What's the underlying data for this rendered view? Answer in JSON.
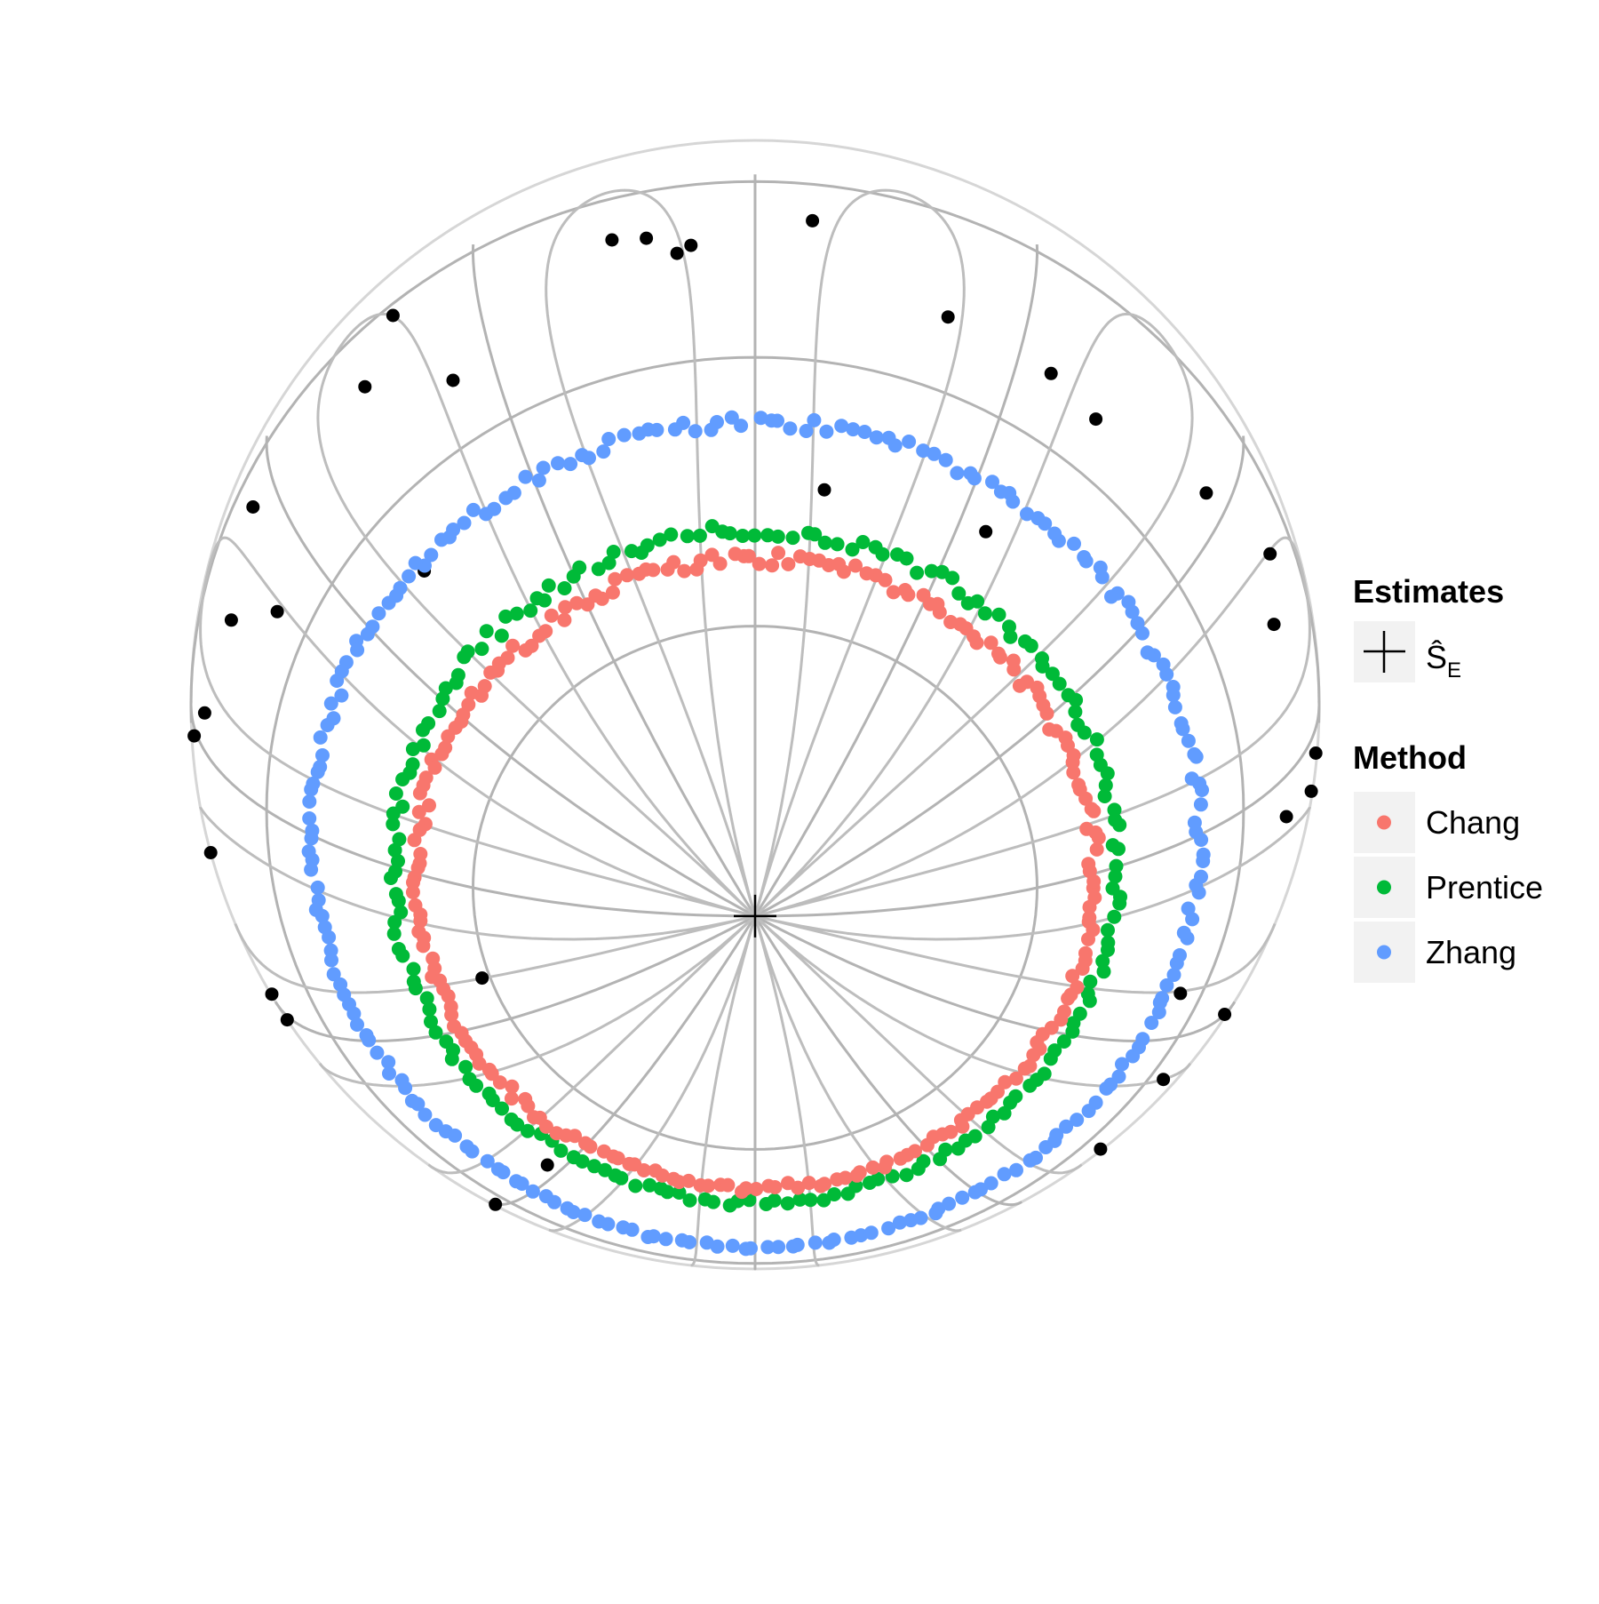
{
  "chart_data": {
    "type": "scatter",
    "title": "",
    "projection": "orthographic-sphere",
    "grid": true,
    "legend_placement": "right",
    "center_estimate": {
      "label": "Ŝ",
      "subscript": "E",
      "legend_title": "Estimates",
      "color": "#000000"
    },
    "method_legend_title": "Method",
    "series": [
      {
        "name": "Chang",
        "color": "#F8766D",
        "colatitude_deg": 37,
        "count": 220
      },
      {
        "name": "Prentice",
        "color": "#00BA38",
        "colatitude_deg": 40,
        "count": 190
      },
      {
        "name": "Zhang",
        "color": "#619CFF",
        "colatitude_deg": 52,
        "count": 230
      }
    ],
    "observations": {
      "color": "#000000",
      "points": [
        [
          -3.1,
          84.5
        ],
        [
          -6.8,
          83.2
        ],
        [
          21.7,
          79.3
        ],
        [
          16.3,
          73.4
        ],
        [
          49.2,
          67.6
        ],
        [
          55.9,
          69.4
        ],
        [
          68.7,
          70.3
        ],
        [
          33.2,
          72.9
        ],
        [
          84.1,
          81.6
        ],
        [
          96.7,
          77.1
        ],
        [
          98.2,
          76.0
        ],
        [
          101.3,
          79.6
        ],
        [
          104.9,
          80.7
        ],
        [
          130.0,
          87.0
        ],
        [
          56.0,
          47.0
        ],
        [
          125.0,
          69.0
        ],
        [
          135.0,
          78.0
        ],
        [
          139.0,
          51.0
        ],
        [
          154.0,
          82.0
        ],
        [
          158.0,
          66.0
        ],
        [
          164.0,
          75.0
        ],
        [
          176.0,
          78.0
        ],
        [
          181.0,
          84.0
        ],
        [
          194.0,
          84.0
        ],
        [
          208.0,
          76.0
        ],
        [
          212.0,
          78.0
        ],
        [
          215.0,
          85.0
        ],
        [
          224.0,
          87.0
        ],
        [
          238.0,
          44.0
        ],
        [
          240.0,
          67.0
        ],
        [
          244.0,
          79.0
        ],
        [
          248.0,
          84.0
        ],
        [
          253.0,
          88.0
        ],
        [
          268.0,
          85.0
        ],
        [
          286.0,
          75.0
        ],
        [
          294.0,
          86.0
        ],
        [
          302.0,
          89.0
        ],
        [
          303.0,
          81.0
        ],
        [
          311.0,
          69.0
        ],
        [
          318.0,
          83.0
        ],
        [
          323.0,
          65.0
        ],
        [
          330.0,
          74.0
        ],
        [
          337.0,
          55.0
        ],
        [
          200.0,
          31.0
        ],
        [
          80.0,
          45.0
        ],
        [
          355.0,
          71.0
        ]
      ]
    }
  }
}
